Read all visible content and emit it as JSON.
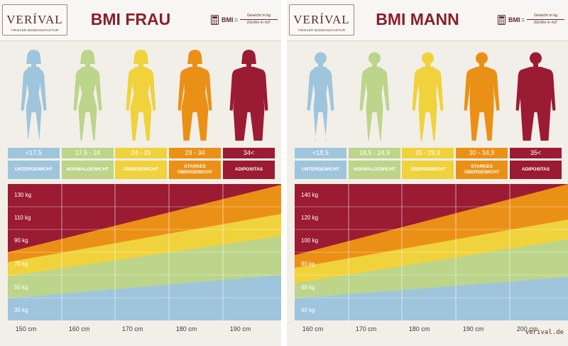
{
  "panels": {
    "frau": {
      "title": "BMI FRAU",
      "ranges": [
        "<17,5",
        "17,5 - 24",
        "24 - 29",
        "29 - 34",
        "34<"
      ],
      "categories": [
        "UNTERGEWICHT",
        "NORMALGEWICHT",
        "ÜBERGEWICHT",
        "STARKES ÜBERGEWICHT",
        "ADIPOSITAS"
      ],
      "weights": [
        "130 kg",
        "110 kg",
        "90 kg",
        "70 kg",
        "50 kg",
        "30 kg"
      ],
      "heights": [
        "150 cm",
        "160 cm",
        "170 cm",
        "180 cm",
        "190 cm"
      ]
    },
    "mann": {
      "title": "BMI MANN",
      "ranges": [
        "<18,5",
        "18,5 - 24,9",
        "25 - 29,9",
        "30 - 34,9",
        "35<"
      ],
      "categories": [
        "UNTERGEWICHT",
        "NORMALGEWICHT",
        "ÜBERGEWICHT",
        "STARKES ÜBERGEWICHT",
        "ADIPOSITAS"
      ],
      "weights": [
        "140 kg",
        "120 kg",
        "100 kg",
        "80 kg",
        "60 kg",
        "40 kg"
      ],
      "heights": [
        "160 cm",
        "170 cm",
        "180 cm",
        "190 cm",
        "200 cm"
      ]
    }
  },
  "logo": {
    "main": "VERÍVAL",
    "sub": "TIROLER BIOMANUFAKTUR"
  },
  "formula": {
    "bmi": "BMI",
    "equals": "=",
    "numerator": "Gewicht in kg",
    "denominator": "(Größe in m)²"
  },
  "watermark": "verival.de",
  "colors": {
    "untergewicht": "#9fc5dd",
    "normalgewicht": "#bcd58a",
    "uebergewicht": "#f0d23c",
    "starkes_uebergewicht": "#eb9016",
    "adipositas": "#9b1b32",
    "title": "#8a1f2e"
  }
}
